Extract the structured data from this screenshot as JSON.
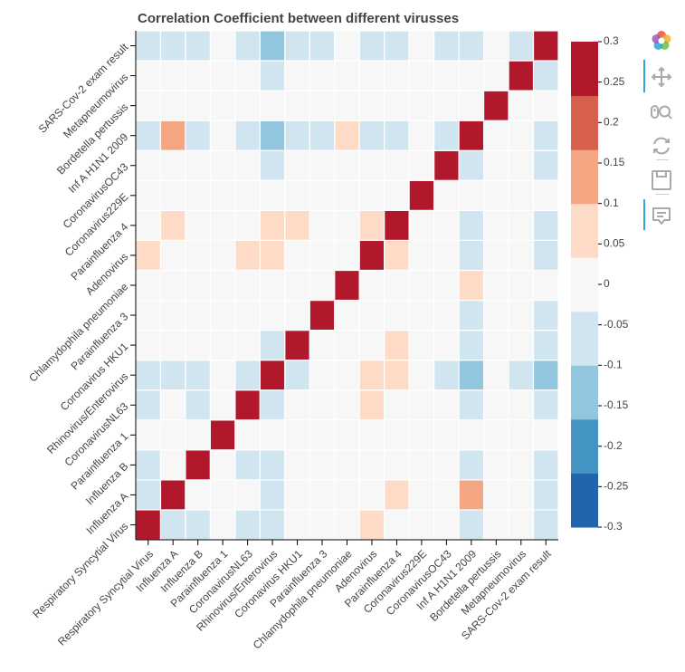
{
  "chart_data": {
    "type": "heatmap",
    "title": "Correlation Coefficient between different virusses",
    "x_categories": [
      "Respiratory Syncytial Virus",
      "Influenza A",
      "Influenza B",
      "Parainfluenza 1",
      "CoronavirusNL63",
      "Rhinovirus/Enterovirus",
      "Coronavirus HKU1",
      "Parainfluenza 3",
      "Chlamydophila pneumoniae",
      "Adenovirus",
      "Parainfluenza 4",
      "Coronavirus229E",
      "CoronavirusOC43",
      "Inf A H1N1 2009",
      "Bordetella pertussis",
      "Metapneumovirus",
      "SARS-Cov-2 exam result"
    ],
    "y_categories": [
      "Respiratory Syncytial Virus",
      "Influenza A",
      "Influenza B",
      "Parainfluenza 1",
      "CoronavirusNL63",
      "Rhinovirus/Enterovirus",
      "Coronavirus HKU1",
      "Parainfluenza 3",
      "Chlamydophila pneumoniae",
      "Adenovirus",
      "Parainfluenza 4",
      "Coronavirus229E",
      "CoronavirusOC43",
      "Inf A H1N1 2009",
      "Bordetella pertussis",
      "Metapneumovirus",
      "SARS-Cov-2 exam result"
    ],
    "values": [
      [
        1.0,
        -0.05,
        -0.06,
        -0.02,
        -0.06,
        -0.04,
        -0.03,
        -0.02,
        0.0,
        0.06,
        -0.03,
        -0.02,
        -0.02,
        -0.07,
        0.0,
        -0.02,
        -0.07
      ],
      [
        -0.05,
        1.0,
        -0.03,
        -0.02,
        -0.03,
        -0.07,
        -0.03,
        -0.02,
        0.0,
        -0.03,
        0.06,
        -0.02,
        -0.02,
        0.14,
        0.0,
        -0.02,
        -0.07
      ],
      [
        -0.06,
        -0.03,
        1.0,
        -0.02,
        -0.04,
        -0.07,
        -0.03,
        -0.02,
        0.0,
        -0.03,
        -0.03,
        -0.02,
        -0.02,
        -0.07,
        0.0,
        -0.02,
        -0.08
      ],
      [
        -0.02,
        -0.02,
        -0.02,
        1.0,
        -0.01,
        -0.03,
        -0.01,
        -0.01,
        0.0,
        -0.01,
        -0.01,
        -0.01,
        -0.01,
        -0.03,
        0.0,
        -0.01,
        -0.03
      ],
      [
        -0.06,
        -0.03,
        -0.04,
        -0.01,
        1.0,
        -0.07,
        -0.03,
        -0.02,
        0.0,
        0.06,
        -0.03,
        -0.02,
        -0.02,
        -0.07,
        0.0,
        -0.02,
        -0.04
      ],
      [
        -0.04,
        -0.07,
        -0.07,
        -0.03,
        -0.07,
        1.0,
        -0.06,
        -0.03,
        0.0,
        0.06,
        0.06,
        -0.03,
        -0.04,
        -0.11,
        0.0,
        -0.06,
        -0.12
      ],
      [
        -0.03,
        -0.03,
        -0.03,
        -0.01,
        -0.03,
        -0.06,
        1.0,
        -0.02,
        0.0,
        -0.03,
        0.07,
        -0.02,
        -0.02,
        -0.04,
        0.0,
        -0.02,
        -0.06
      ],
      [
        -0.02,
        -0.02,
        -0.02,
        -0.01,
        -0.02,
        -0.03,
        -0.02,
        1.0,
        0.0,
        -0.02,
        -0.02,
        -0.01,
        -0.01,
        -0.04,
        0.0,
        -0.01,
        -0.04
      ],
      [
        0.0,
        0.0,
        0.0,
        0.0,
        0.0,
        0.0,
        0.0,
        0.0,
        1.0,
        0.0,
        0.0,
        0.0,
        0.0,
        0.07,
        0.0,
        0.0,
        0.0
      ],
      [
        0.06,
        -0.03,
        -0.03,
        -0.01,
        0.06,
        0.06,
        -0.03,
        -0.02,
        0.0,
        1.0,
        0.07,
        -0.02,
        -0.02,
        -0.04,
        0.0,
        -0.02,
        -0.04
      ],
      [
        -0.03,
        0.06,
        -0.03,
        -0.01,
        -0.03,
        0.06,
        0.06,
        -0.02,
        0.0,
        0.07,
        1.0,
        -0.02,
        -0.02,
        -0.04,
        0.0,
        -0.02,
        -0.06
      ],
      [
        -0.02,
        -0.02,
        -0.02,
        -0.01,
        -0.02,
        -0.03,
        -0.02,
        -0.01,
        0.0,
        -0.02,
        -0.02,
        1.0,
        -0.01,
        -0.03,
        0.0,
        -0.01,
        -0.03
      ],
      [
        -0.02,
        -0.02,
        -0.02,
        -0.01,
        -0.02,
        -0.04,
        -0.02,
        -0.01,
        0.0,
        -0.02,
        -0.02,
        -0.01,
        1.0,
        -0.04,
        0.0,
        -0.01,
        -0.04
      ],
      [
        -0.07,
        0.14,
        -0.07,
        -0.03,
        -0.07,
        -0.11,
        -0.04,
        -0.04,
        0.07,
        -0.04,
        -0.04,
        -0.03,
        -0.04,
        1.0,
        0.0,
        -0.03,
        -0.06
      ],
      [
        0.0,
        0.0,
        0.0,
        0.0,
        0.0,
        0.0,
        0.0,
        0.0,
        0.0,
        0.0,
        0.0,
        0.0,
        0.0,
        0.0,
        1.0,
        0.0,
        -0.01
      ],
      [
        -0.02,
        -0.02,
        -0.02,
        -0.01,
        -0.02,
        -0.06,
        -0.02,
        -0.01,
        0.0,
        -0.02,
        -0.02,
        -0.01,
        -0.01,
        -0.03,
        0.0,
        1.0,
        -0.04
      ],
      [
        -0.07,
        -0.07,
        -0.08,
        -0.03,
        -0.04,
        -0.12,
        -0.06,
        -0.04,
        0.0,
        -0.04,
        -0.06,
        -0.03,
        -0.04,
        -0.06,
        -0.01,
        -0.04,
        1.0
      ]
    ],
    "color_range": [
      -0.3,
      0.3
    ],
    "color_scale": [
      "#2166ac",
      "#4393c3",
      "#92c5de",
      "#d1e5f0",
      "#f7f7f7",
      "#fddbc7",
      "#f4a582",
      "#d6604d",
      "#b2182b"
    ],
    "colorbar_ticks": [
      "-0.3",
      "-0.25",
      "-0.2",
      "-0.15",
      "-0.1",
      "-0.05",
      "0",
      "0.05",
      "0.1",
      "0.15",
      "0.2",
      "0.25",
      "0.3"
    ],
    "colorbar_tick_values": [
      -0.3,
      -0.25,
      -0.2,
      -0.15,
      -0.1,
      -0.05,
      0,
      0.05,
      0.1,
      0.15,
      0.2,
      0.25,
      0.3
    ],
    "colorbar_placement": "right",
    "grid": false
  },
  "toolbar": {
    "tools": [
      "bokeh-logo-icon",
      "pan-icon",
      "wheel-zoom-icon",
      "reset-icon",
      "save-icon",
      "hover-icon"
    ]
  }
}
